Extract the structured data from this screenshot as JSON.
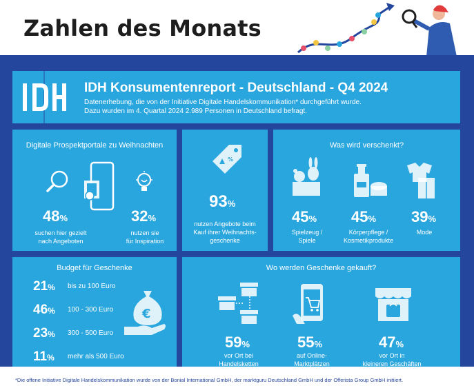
{
  "page_title": "Zahlen des Monats",
  "header": {
    "logo_text": "IDH",
    "title": "IDH Konsumentenreport - Deutschland - Q4 2024",
    "subtitle_line1": "Datenerhebung, die von der Initiative Digitale Handelskommunikation* durchgeführt wurde.",
    "subtitle_line2": "Dazu wurden im 4. Quartal 2024 2.989 Personen in Deutschland befragt."
  },
  "prospekt": {
    "title": "Digitale Prospektportale zu Weihnachten",
    "stats": [
      {
        "value": "48",
        "unit": "%",
        "caption_line1": "suchen hier gezielt",
        "caption_line2": "nach Angeboten",
        "icon": "magnifier-icon"
      },
      {
        "value": "32",
        "unit": "%",
        "caption_line1": "nutzen sie",
        "caption_line2": "für Inspiration",
        "icon": "lightbulb-icon"
      }
    ],
    "phone_icon": "smartphone-brochure-icon"
  },
  "angebote": {
    "value": "93",
    "unit": "%",
    "caption_line1": "nutzen Angebote beim",
    "caption_line2": "Kauf ihrer Weihnachts-",
    "caption_line3": "geschenke",
    "icon": "price-tag-icon"
  },
  "verschenkt": {
    "title": "Was wird verschenkt?",
    "stats": [
      {
        "value": "45",
        "unit": "%",
        "caption_line1": "Spielzeug /",
        "caption_line2": "Spiele",
        "icon": "toys-icon"
      },
      {
        "value": "45",
        "unit": "%",
        "caption_line1": "Körperpflege /",
        "caption_line2": "Kosmetikprodukte",
        "icon": "cosmetics-icon"
      },
      {
        "value": "39",
        "unit": "%",
        "caption_line1": "Mode",
        "caption_line2": "",
        "icon": "clothing-icon"
      }
    ]
  },
  "budget": {
    "title": "Budget für Geschenke",
    "rows": [
      {
        "value": "21",
        "unit": "%",
        "label": "bis zu 100 Euro"
      },
      {
        "value": "46",
        "unit": "%",
        "label": "100 - 300 Euro"
      },
      {
        "value": "23",
        "unit": "%",
        "label": "300 - 500 Euro"
      },
      {
        "value": "11",
        "unit": "%",
        "label": "mehr als 500 Euro"
      }
    ],
    "icon": "money-bag-hand-icon",
    "icon_symbol": "€"
  },
  "gekauft": {
    "title": "Wo werden Geschenke gekauft?",
    "stats": [
      {
        "value": "59",
        "unit": "%",
        "caption_line1": "vor Ort bei",
        "caption_line2": "Handelsketten",
        "icon": "store-chain-icon"
      },
      {
        "value": "55",
        "unit": "%",
        "caption_line1": "auf Online-",
        "caption_line2": "Marktplätzen",
        "icon": "phone-cart-icon"
      },
      {
        "value": "47",
        "unit": "%",
        "caption_line1": "vor Ort in",
        "caption_line2": "kleineren Geschäften",
        "icon": "small-shop-icon"
      }
    ]
  },
  "footnote": "*Die offene Initiative Digitale Handelskommunikation wurde von der Bonial International GmbH, der marktguru Deutschland GmbH und der Offerista Group GmbH initiiert.",
  "colors": {
    "navy": "#24469d",
    "panel": "#2aa6de",
    "white": "#ffffff",
    "text_dark": "#1e1e1e"
  }
}
